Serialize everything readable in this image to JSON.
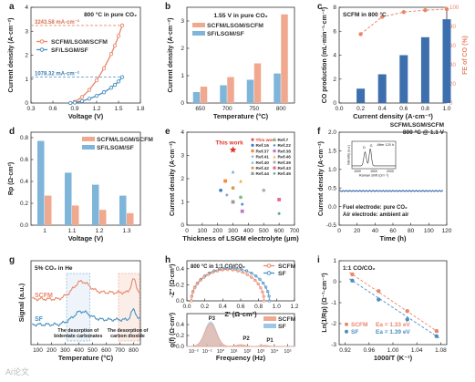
{
  "watermark": "Ai论文",
  "chart_data": [
    {
      "panel": "a",
      "type": "line",
      "annotation": "800 °C in pure CO₂",
      "xlabel": "Voltage (V)",
      "ylabel": "Current density (A·cm⁻²)",
      "xlim": [
        0.3,
        1.8
      ],
      "ylim": [
        0,
        4
      ],
      "xticks": [
        "0.3",
        "0.6",
        "0.9",
        "1.2",
        "1.5",
        "1.8"
      ],
      "yticks": [
        "0",
        "1",
        "2",
        "3",
        "4"
      ],
      "callouts": [
        "3243.58 mA·cm⁻²",
        "1078.32 mA·cm⁻²"
      ],
      "series": [
        {
          "name": "SCFM/LSGM/SCFM",
          "color": "#e9866a",
          "x": [
            0.84,
            0.9,
            1.0,
            1.1,
            1.2,
            1.3,
            1.4,
            1.45,
            1.5,
            1.55
          ],
          "y": [
            0,
            0.05,
            0.25,
            0.55,
            0.95,
            1.45,
            2.05,
            2.4,
            2.8,
            3.24
          ]
        },
        {
          "name": "SF/LSGM/SF",
          "color": "#4a8fc0",
          "x": [
            0.84,
            0.9,
            1.0,
            1.1,
            1.2,
            1.3,
            1.4,
            1.45,
            1.5,
            1.55
          ],
          "y": [
            0,
            0.02,
            0.08,
            0.18,
            0.3,
            0.45,
            0.64,
            0.76,
            0.9,
            1.08
          ]
        }
      ]
    },
    {
      "panel": "b",
      "type": "bar",
      "annotation": "1.55 V in pure CO₂",
      "xlabel": "Temperature (°C)",
      "ylabel": "Current density (A·cm⁻²)",
      "categories": [
        "650",
        "700",
        "750",
        "800"
      ],
      "ylim": [
        0,
        3.5
      ],
      "yticks": [
        "0",
        "1",
        "2",
        "3"
      ],
      "series": [
        {
          "name": "SF/LSGM/SF",
          "color": "#7eb5d9",
          "values": [
            0.4,
            0.65,
            0.85,
            1.08
          ]
        },
        {
          "name": "SCFM/LSGM/SCFM",
          "color": "#f0a98f",
          "values": [
            0.6,
            0.95,
            1.45,
            3.24
          ]
        }
      ]
    },
    {
      "panel": "c",
      "type": "bar",
      "annotation": "SCFM in 800 °C",
      "xlabel": "Current density (A·cm⁻²)",
      "ylabel": "CO production (mL·min⁻¹·cm⁻²)",
      "ylabel2": "FE of CO (%)",
      "xlim": [
        0,
        1.0
      ],
      "ylim": [
        0,
        8
      ],
      "ylim2": [
        0,
        100
      ],
      "xticks": [
        "0.0",
        "0.2",
        "0.4",
        "0.6",
        "0.8",
        "1.0"
      ],
      "yticks": [
        "0",
        "2",
        "4",
        "6",
        "8"
      ],
      "yticks2": [
        "0",
        "20",
        "40",
        "60",
        "80",
        "100"
      ],
      "x": [
        0.2,
        0.4,
        0.6,
        0.8,
        1.0
      ],
      "co_production": [
        1.2,
        2.4,
        4.0,
        5.5,
        7.0
      ],
      "fe": [
        72,
        90,
        95,
        97,
        98
      ]
    },
    {
      "panel": "d",
      "type": "bar",
      "xlabel": "Voltage (V)",
      "ylabel": "Rp (Ω·cm²)",
      "categories": [
        "1",
        "1.1",
        "1.2",
        "1.3"
      ],
      "ylim": [
        0,
        0.85
      ],
      "yticks": [
        "0.0",
        "0.2",
        "0.4",
        "0.6",
        "0.8"
      ],
      "series": [
        {
          "name": "SF/LSGM/SF",
          "color": "#7eb5d9",
          "values": [
            0.77,
            0.48,
            0.37,
            0.27
          ]
        },
        {
          "name": "SCFM/LSGM/SCFM",
          "color": "#f0a98f",
          "values": [
            0.27,
            0.18,
            0.14,
            0.11
          ]
        }
      ]
    },
    {
      "panel": "e",
      "type": "scatter",
      "xlabel": "Thickness of LSGM electrolyte (μm)",
      "ylabel": "Current density (A·cm⁻²)",
      "xlim": [
        0,
        700
      ],
      "ylim": [
        0,
        4
      ],
      "xticks": [
        "0",
        "100",
        "200",
        "300",
        "400",
        "500",
        "600",
        "700"
      ],
      "yticks": [
        "0",
        "1",
        "2",
        "3",
        "4"
      ],
      "highlight_label": "This work",
      "legend": [
        "This work",
        "Ref.16",
        "Ref.37",
        "Ref.41",
        "Ref.40",
        "Ref.42",
        "Ref.44",
        "Ref.7",
        "Ref.22",
        "Ref.38",
        "Ref.46",
        "Ref.39",
        "Ref.43",
        "Ref.45"
      ],
      "points": [
        {
          "x": 300,
          "y": 3.24,
          "color": "#e0352b",
          "marker": "star"
        },
        {
          "x": 220,
          "y": 1.5,
          "color": "#3d7fc0",
          "marker": "circle"
        },
        {
          "x": 250,
          "y": 1.9,
          "color": "#ef8d39",
          "marker": "square"
        },
        {
          "x": 260,
          "y": 1.3,
          "color": "#8aa7d6",
          "marker": "diamond"
        },
        {
          "x": 300,
          "y": 2.3,
          "color": "#6fb6e0",
          "marker": "triangle"
        },
        {
          "x": 300,
          "y": 1.6,
          "color": "#d6a04a",
          "marker": "circle"
        },
        {
          "x": 300,
          "y": 1.0,
          "color": "#9a9a9a",
          "marker": "square"
        },
        {
          "x": 350,
          "y": 1.2,
          "color": "#7fbf7f",
          "marker": "circle"
        },
        {
          "x": 360,
          "y": 0.9,
          "color": "#5b8fd1",
          "marker": "diamond"
        },
        {
          "x": 360,
          "y": 0.6,
          "color": "#c07ac0",
          "marker": "square"
        },
        {
          "x": 350,
          "y": 1.9,
          "color": "#e8b24a",
          "marker": "triangle"
        },
        {
          "x": 500,
          "y": 1.5,
          "color": "#b0b0b0",
          "marker": "circle"
        },
        {
          "x": 600,
          "y": 1.1,
          "color": "#e56b8a",
          "marker": "square"
        },
        {
          "x": 600,
          "y": 0.5,
          "color": "#4fa3a3",
          "marker": "diamond"
        }
      ]
    },
    {
      "panel": "f",
      "type": "line",
      "annotation": [
        "SCFM/LSGM/SCFM",
        "800 °C @ 1.1 V"
      ],
      "notes": [
        "Fuel electrode: pure CO₂",
        "Air electrode: ambient air"
      ],
      "inset": {
        "xlabel": "Raman shift (cm⁻¹)",
        "ylabel": "Intensity (a.u.)",
        "label": "After 120 h",
        "xticks": [
          "1000",
          "1500",
          "2000"
        ],
        "peaks": [
          "D",
          "G"
        ]
      },
      "xlabel": "Time (h)",
      "ylabel": "Current density (A·cm⁻²)",
      "xlim": [
        0,
        120
      ],
      "ylim": [
        -0.5,
        2.0
      ],
      "xticks": [
        "0",
        "20",
        "40",
        "60",
        "80",
        "100",
        "120"
      ],
      "yticks": [
        "-0.5",
        "0.0",
        "0.5",
        "1.0",
        "1.5",
        "2.0"
      ],
      "series": [
        {
          "name": "",
          "color": "#3d6fae",
          "level": 0.42
        }
      ]
    },
    {
      "panel": "g",
      "type": "line",
      "annotation": "5% CO₂ in He",
      "xlabel": "Temperature (°C)",
      "ylabel": "Signal (a.u.)",
      "xlim": [
        50,
        850
      ],
      "xticks": [
        "100",
        "200",
        "300",
        "400",
        "500",
        "600",
        "700",
        "800"
      ],
      "labels": [
        "The desorption of bidentate carbonates",
        "The desorption of carbon dioxide"
      ],
      "series": [
        {
          "name": "SCFM",
          "color": "#e9866a"
        },
        {
          "name": "SF",
          "color": "#4a8fc0"
        }
      ]
    },
    {
      "panel": "h",
      "type": "scatter",
      "annotation": "800 °C in 1:1 CO/CO₂",
      "xlabel": "Z' (Ω·cm²)",
      "ylabel": "-Z'' (Ω·cm²)",
      "xlim": [
        0.0,
        1.2
      ],
      "ylim": [
        0,
        0.5
      ],
      "xticks": [
        "0.0",
        "0.2",
        "0.4",
        "0.6",
        "0.8",
        "1.0",
        "1.2"
      ],
      "yticks": [
        "0.0",
        "0.2",
        "0.4"
      ],
      "series": [
        {
          "name": "SCFM",
          "color": "#e9866a"
        },
        {
          "name": "SF",
          "color": "#4a8fc0"
        }
      ]
    },
    {
      "panel": "h2",
      "type": "area",
      "xlabel": "Frequency (Hz)",
      "ylabel": "g(f) (Ω·cm²)",
      "ylim": [
        0,
        0.6
      ],
      "yticks": [
        "0.0",
        "0.2",
        "0.4"
      ],
      "xticks": [
        "10⁻²",
        "10⁻¹",
        "10⁰",
        "10¹",
        "10²",
        "10³",
        "10⁴",
        "10⁵"
      ],
      "peaks": [
        "P3",
        "P2",
        "P1"
      ],
      "series": [
        {
          "name": "SCFM",
          "color": "#f0a98f"
        },
        {
          "name": "SF",
          "color": "#9cc7e6"
        }
      ]
    },
    {
      "panel": "i",
      "type": "scatter",
      "annotation": "1:1 CO/CO₂",
      "xlabel": "1000/T (K⁻¹)",
      "ylabel": "Ln(1/Rp) (Ω⁻¹·cm⁻²)",
      "xlim": [
        0.91,
        1.09
      ],
      "ylim": [
        -3,
        1
      ],
      "xticks": [
        "0.92",
        "0.96",
        "1.00",
        "1.04",
        "1.08"
      ],
      "yticks": [
        "-3",
        "-2",
        "-1",
        "0",
        "1"
      ],
      "series": [
        {
          "name": "SCFM",
          "color": "#e9866a",
          "ea": "Ea = 1.33 eV",
          "x": [
            0.932,
            0.976,
            1.024,
            1.073
          ],
          "y": [
            0.35,
            -0.45,
            -1.4,
            -2.35
          ]
        },
        {
          "name": "SF",
          "color": "#4a8fc0",
          "ea": "Ea = 1.39 eV",
          "x": [
            0.932,
            0.976,
            1.024,
            1.073
          ],
          "y": [
            0.05,
            -0.85,
            -1.8,
            -2.6
          ]
        }
      ]
    }
  ]
}
